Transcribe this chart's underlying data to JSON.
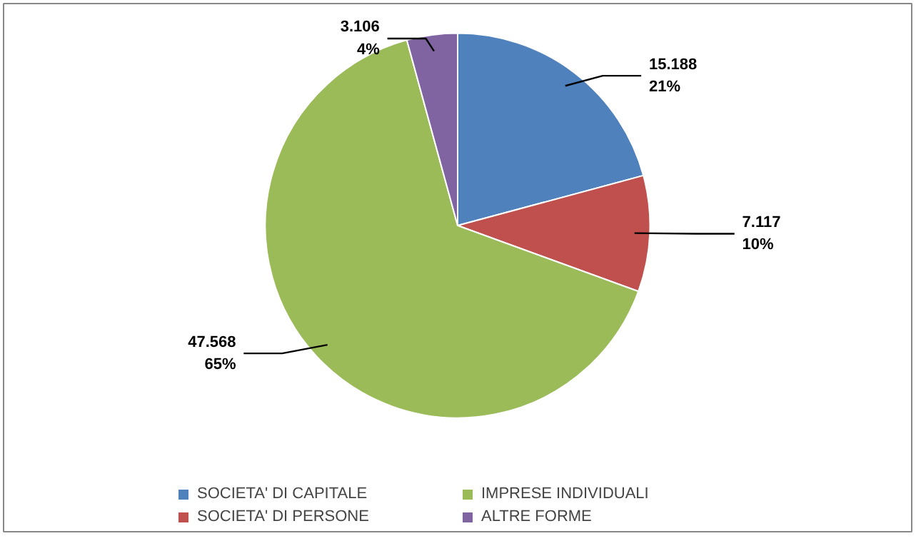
{
  "chart_data": {
    "type": "pie",
    "categories": [
      "SOCIETA' DI CAPITALE",
      "SOCIETA' DI PERSONE",
      "IMPRESE INDIVIDUALI",
      "ALTRE FORME"
    ],
    "values": [
      15188,
      7117,
      47568,
      3106
    ],
    "colors": [
      "#4f81bd",
      "#c0504d",
      "#9bbb59",
      "#8064a2"
    ],
    "value_labels": [
      "15.188\n21%",
      "7.117\n10%",
      "47.568\n65%",
      "3.106\n4%"
    ],
    "legend": "bottom"
  }
}
